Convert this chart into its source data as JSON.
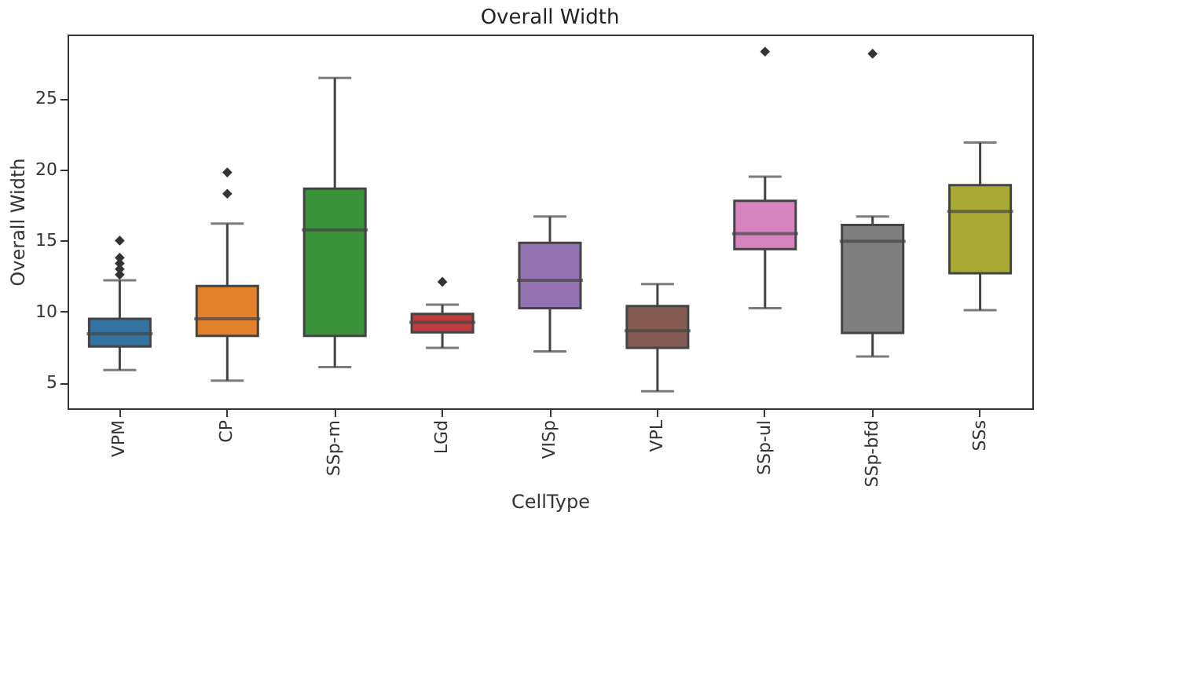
{
  "chart_data": {
    "type": "box",
    "title": "Overall Width",
    "xlabel": "CellType",
    "ylabel": "Overall Width",
    "categories": [
      "VPM",
      "CP",
      "SSp-m",
      "LGd",
      "VISp",
      "VPL",
      "SSp-ul",
      "SSp-bfd",
      "SSs"
    ],
    "colors": [
      "#3274a1",
      "#e1812c",
      "#3a923a",
      "#c03d3e",
      "#9372b2",
      "#845b53",
      "#d684bd",
      "#7f7f7f",
      "#a9aa35"
    ],
    "boxes": [
      {
        "low": 5.9,
        "q1": 7.55,
        "median": 8.45,
        "q3": 9.5,
        "high": 12.2,
        "outliers": [
          12.6,
          13.0,
          13.4,
          13.8,
          15.0
        ]
      },
      {
        "low": 5.15,
        "q1": 8.3,
        "median": 9.5,
        "q3": 11.8,
        "high": 16.2,
        "outliers": [
          18.3,
          19.8
        ]
      },
      {
        "low": 6.1,
        "q1": 8.3,
        "median": 15.75,
        "q3": 18.65,
        "high": 26.45
      },
      {
        "low": 7.45,
        "q1": 8.55,
        "median": 9.25,
        "q3": 9.85,
        "high": 10.5,
        "outliers": [
          12.1
        ]
      },
      {
        "low": 7.2,
        "q1": 10.25,
        "median": 12.2,
        "q3": 14.85,
        "high": 16.7
      },
      {
        "low": 4.4,
        "q1": 7.45,
        "median": 8.65,
        "q3": 10.4,
        "high": 11.95
      },
      {
        "low": 10.25,
        "q1": 14.4,
        "median": 15.5,
        "q3": 17.8,
        "high": 19.5,
        "outliers": [
          28.3
        ]
      },
      {
        "low": 6.85,
        "q1": 8.5,
        "median": 14.95,
        "q3": 16.1,
        "high": 16.7,
        "outliers": [
          28.15
        ]
      },
      {
        "low": 10.1,
        "q1": 12.7,
        "median": 17.05,
        "q3": 18.9,
        "high": 21.9
      }
    ],
    "ylim": [
      3.2,
      29.5
    ],
    "yticks": [
      5,
      10,
      15,
      20,
      25
    ],
    "grid": false,
    "marker": "diamond"
  }
}
